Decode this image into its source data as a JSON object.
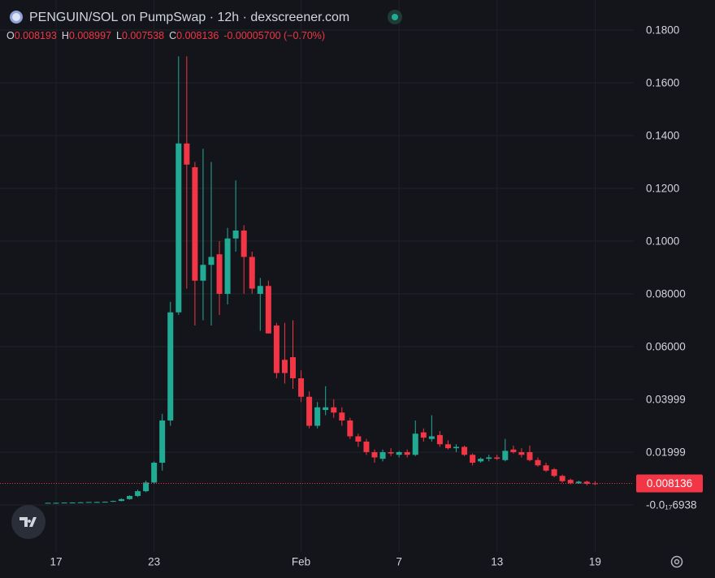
{
  "chart_data": {
    "type": "candlestick",
    "title": "PENGUIN/SOL on PumpSwap · 12h · dexscreener.com",
    "ohlc_labels": [
      "O",
      "H",
      "L",
      "C"
    ],
    "change_label": "-0.00005700 (−0.70%)",
    "categories": [
      null,
      "17",
      null,
      null,
      null,
      null,
      null,
      null,
      null,
      null,
      null,
      null,
      null,
      "23",
      null,
      null,
      null,
      null,
      null,
      null,
      null,
      null,
      null,
      null,
      null,
      null,
      null,
      null,
      null,
      null,
      null,
      "Feb",
      null,
      null,
      null,
      null,
      null,
      null,
      null,
      null,
      null,
      null,
      null,
      "7",
      null,
      null,
      null,
      null,
      null,
      null,
      null,
      null,
      null,
      null,
      null,
      "13",
      null,
      null,
      null,
      null,
      null,
      null,
      null,
      null,
      null,
      null,
      null,
      "19"
    ],
    "open": [
      0.0007,
      0.0008,
      0.0008,
      0.0009,
      0.0009,
      0.001,
      0.0011,
      0.0011,
      0.0012,
      0.0015,
      0.0022,
      0.0034,
      0.0052,
      0.0085,
      0.016,
      0.032,
      0.073,
      0.137,
      0.128,
      0.085,
      0.091,
      0.095,
      0.08,
      0.101,
      0.104,
      0.094,
      0.08,
      0.083,
      0.068,
      0.055,
      0.056,
      0.048,
      0.041,
      0.03,
      0.036,
      0.037,
      0.035,
      0.032,
      0.026,
      0.024,
      0.02,
      0.0175,
      0.02,
      0.019,
      0.02,
      0.019,
      0.0275,
      0.025,
      0.0265,
      0.023,
      0.0215,
      0.022,
      0.019,
      0.0165,
      0.0175,
      0.018,
      0.017,
      0.021,
      0.02,
      0.02,
      0.017,
      0.015,
      0.0135,
      0.011,
      0.0095,
      0.0082,
      0.0088,
      0.008193
    ],
    "high": [
      0.0008,
      0.0009,
      0.0009,
      0.001,
      0.0011,
      0.0011,
      0.0012,
      0.0013,
      0.0016,
      0.0025,
      0.0036,
      0.0058,
      0.0092,
      0.0165,
      0.0345,
      0.077,
      0.17,
      0.17,
      0.13,
      0.135,
      0.13,
      0.1,
      0.105,
      0.123,
      0.106,
      0.096,
      0.086,
      0.085,
      0.069,
      0.069,
      0.07,
      0.051,
      0.043,
      0.039,
      0.045,
      0.04,
      0.037,
      0.033,
      0.027,
      0.025,
      0.021,
      0.021,
      0.0215,
      0.0205,
      0.021,
      0.032,
      0.029,
      0.034,
      0.028,
      0.0245,
      0.023,
      0.0225,
      0.0195,
      0.018,
      0.019,
      0.019,
      0.025,
      0.0225,
      0.0215,
      0.0225,
      0.018,
      0.016,
      0.014,
      0.0115,
      0.01,
      0.0092,
      0.0092,
      0.008997
    ],
    "low": [
      0.0006,
      0.0007,
      0.0007,
      0.0008,
      0.0008,
      0.0009,
      0.001,
      0.001,
      0.0011,
      0.0014,
      0.002,
      0.003,
      0.0048,
      0.008,
      0.013,
      0.03,
      0.072,
      0.082,
      0.068,
      0.07,
      0.068,
      0.072,
      0.076,
      0.096,
      0.08,
      0.08,
      0.066,
      0.065,
      0.048,
      0.046,
      0.044,
      0.039,
      0.029,
      0.029,
      0.034,
      0.033,
      0.03,
      0.025,
      0.022,
      0.019,
      0.016,
      0.0165,
      0.0185,
      0.018,
      0.018,
      0.0185,
      0.024,
      0.024,
      0.022,
      0.021,
      0.02,
      0.0185,
      0.015,
      0.016,
      0.0165,
      0.017,
      0.0165,
      0.0195,
      0.018,
      0.0165,
      0.0145,
      0.0125,
      0.0105,
      0.0085,
      0.0078,
      0.008,
      0.0074,
      0.007538
    ],
    "close": [
      0.0008,
      0.0008,
      0.0009,
      0.0009,
      0.001,
      0.0011,
      0.0011,
      0.0012,
      0.0015,
      0.0022,
      0.0034,
      0.0052,
      0.0085,
      0.016,
      0.032,
      0.073,
      0.137,
      0.129,
      0.085,
      0.091,
      0.094,
      0.08,
      0.101,
      0.104,
      0.094,
      0.082,
      0.083,
      0.065,
      0.05,
      0.05,
      0.048,
      0.041,
      0.03,
      0.037,
      0.037,
      0.035,
      0.032,
      0.026,
      0.024,
      0.02,
      0.018,
      0.02,
      0.0195,
      0.02,
      0.019,
      0.027,
      0.0255,
      0.026,
      0.023,
      0.0215,
      0.022,
      0.019,
      0.016,
      0.0175,
      0.018,
      0.0175,
      0.0205,
      0.02,
      0.019,
      0.017,
      0.015,
      0.013,
      0.011,
      0.009,
      0.0082,
      0.0088,
      0.008,
      0.008136
    ],
    "up_color": "#22ab94",
    "down_color": "#f23645",
    "ylim": [
      -0.01785,
      0.19138
    ],
    "yticks": [
      {
        "value": -6.938e-18,
        "label": "-0.0₁₇6938"
      },
      0.01999,
      0.03999,
      {
        "value": 0.06,
        "label": "0.06000"
      },
      {
        "value": 0.08,
        "label": "0.08000"
      },
      {
        "value": 0.1,
        "label": "0.1000"
      },
      {
        "value": 0.12,
        "label": "0.1200"
      },
      {
        "value": 0.14,
        "label": "0.1400"
      },
      {
        "value": 0.16,
        "label": "0.1600"
      },
      {
        "value": 0.18,
        "label": "0.1800"
      }
    ],
    "grid": true
  }
}
